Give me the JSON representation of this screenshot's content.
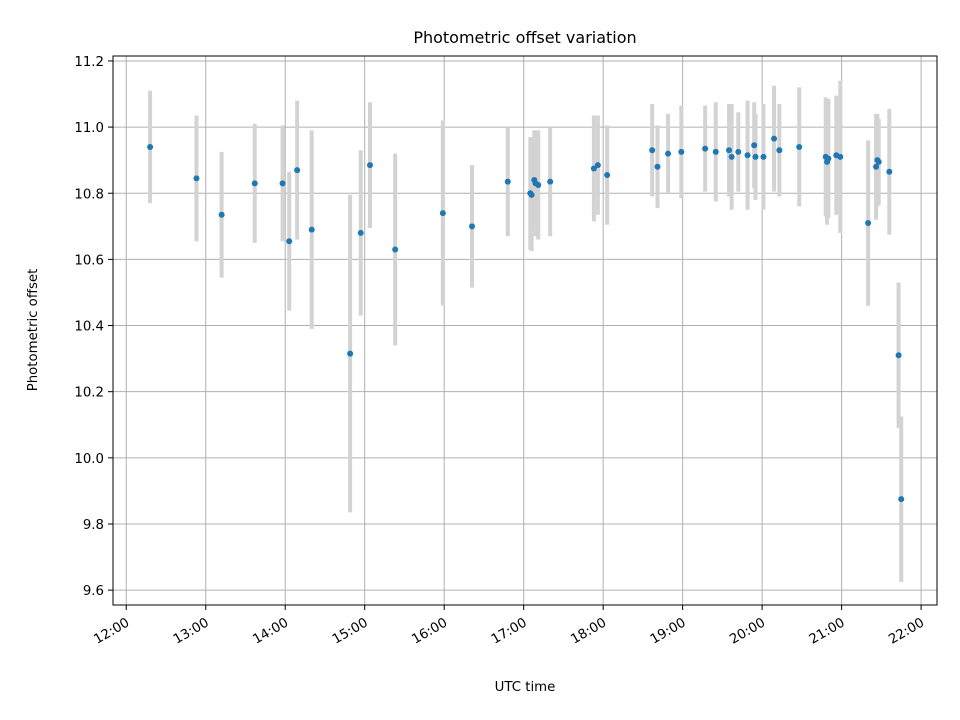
{
  "chart_data": {
    "type": "scatter",
    "title": "Photometric offset variation",
    "xlabel": "UTC time",
    "ylabel": "Photometric offset",
    "xlim": [
      "11:50",
      "22:12"
    ],
    "ylim": [
      9.555,
      11.215
    ],
    "grid": true,
    "x_ticks": [
      "12:00",
      "13:00",
      "14:00",
      "15:00",
      "16:00",
      "17:00",
      "18:00",
      "19:00",
      "20:00",
      "21:00",
      "22:00"
    ],
    "y_ticks": [
      "9.6",
      "9.8",
      "10.0",
      "10.2",
      "10.4",
      "10.6",
      "10.8",
      "11.0",
      "11.2"
    ],
    "colors": {
      "point": "#1f77b4",
      "errorbar": "#d3d3d3",
      "grid": "#b0b0b0"
    },
    "series": [
      {
        "x": [
          "12:18",
          "12:53",
          "13:12",
          "13:37",
          "13:58",
          "14:03",
          "14:09",
          "14:20",
          "14:49",
          "14:57",
          "15:04",
          "15:23",
          "15:59",
          "16:21",
          "16:48",
          "17:05",
          "17:06",
          "17:08",
          "17:09",
          "17:11",
          "17:20",
          "17:53",
          "17:56",
          "18:03",
          "18:37",
          "18:41",
          "18:49",
          "18:59",
          "19:17",
          "19:25",
          "19:35",
          "19:37",
          "19:42",
          "19:49",
          "19:54",
          "19:55",
          "20:01",
          "20:09",
          "20:13",
          "20:28",
          "20:48",
          "20:49",
          "20:50",
          "20:56",
          "20:59",
          "21:20",
          "21:26",
          "21:27",
          "21:28",
          "21:36",
          "21:43",
          "21:45"
        ],
        "y": [
          10.94,
          10.845,
          10.735,
          10.83,
          10.83,
          10.655,
          10.87,
          10.69,
          10.315,
          10.68,
          10.885,
          10.63,
          10.74,
          10.7,
          10.835,
          10.8,
          10.795,
          10.84,
          10.83,
          10.825,
          10.835,
          10.875,
          10.885,
          10.855,
          10.93,
          10.88,
          10.92,
          10.925,
          10.935,
          10.925,
          10.93,
          10.91,
          10.925,
          10.915,
          10.945,
          10.91,
          10.91,
          10.965,
          10.93,
          10.94,
          10.91,
          10.895,
          10.905,
          10.915,
          10.91,
          10.71,
          10.88,
          10.9,
          10.895,
          10.865,
          10.31,
          9.875
        ],
        "yerr": [
          0.17,
          0.19,
          0.19,
          0.18,
          0.175,
          0.21,
          0.21,
          0.3,
          0.48,
          0.25,
          0.19,
          0.29,
          0.28,
          0.185,
          0.165,
          0.17,
          0.17,
          0.15,
          0.16,
          0.165,
          0.165,
          0.16,
          0.15,
          0.15,
          0.14,
          0.125,
          0.12,
          0.14,
          0.13,
          0.15,
          0.14,
          0.16,
          0.12,
          0.165,
          0.13,
          0.13,
          0.16,
          0.16,
          0.14,
          0.18,
          0.18,
          0.19,
          0.18,
          0.18,
          0.23,
          0.25,
          0.16,
          0.14,
          0.13,
          0.19,
          0.22,
          0.25
        ]
      }
    ]
  }
}
